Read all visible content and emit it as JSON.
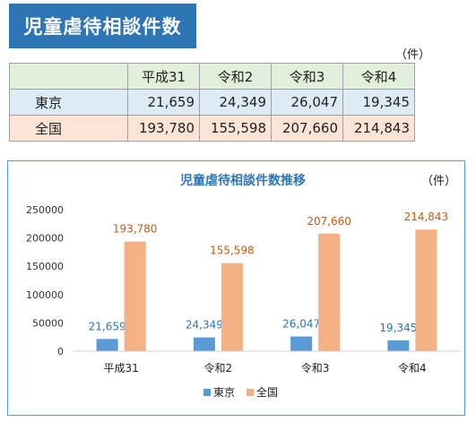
{
  "header": {
    "title": "児童虐待相談件数",
    "unit": "（件）"
  },
  "table": {
    "columns": [
      "平成31",
      "令和2",
      "令和3",
      "令和4"
    ],
    "rows": [
      {
        "label": "東京",
        "values": [
          "21,659",
          "24,349",
          "26,047",
          "19,345"
        ]
      },
      {
        "label": "全国",
        "values": [
          "193,780",
          "155,598",
          "207,660",
          "214,843"
        ]
      }
    ]
  },
  "chart_data": {
    "type": "bar",
    "title": "児童虐待相談件数推移",
    "unit_label": "（件）",
    "categories": [
      "平成31",
      "令和2",
      "令和3",
      "令和4"
    ],
    "series": [
      {
        "name": "東京",
        "color": "#5b9bd5",
        "label_color": "#2e75b6",
        "values": [
          21659,
          24349,
          26047,
          19345
        ],
        "labels": [
          "21,659",
          "24,349",
          "26,047",
          "19,345"
        ]
      },
      {
        "name": "全国",
        "color": "#f4b183",
        "label_color": "#c55a11",
        "values": [
          193780,
          155598,
          207660,
          214843
        ],
        "labels": [
          "193,780",
          "155,598",
          "207,660",
          "214,843"
        ]
      }
    ],
    "ylim": [
      0,
      250000
    ],
    "yticks": [
      "0",
      "50000",
      "100000",
      "150000",
      "200000",
      "250000"
    ],
    "legend_position": "bottom",
    "grid": false
  }
}
